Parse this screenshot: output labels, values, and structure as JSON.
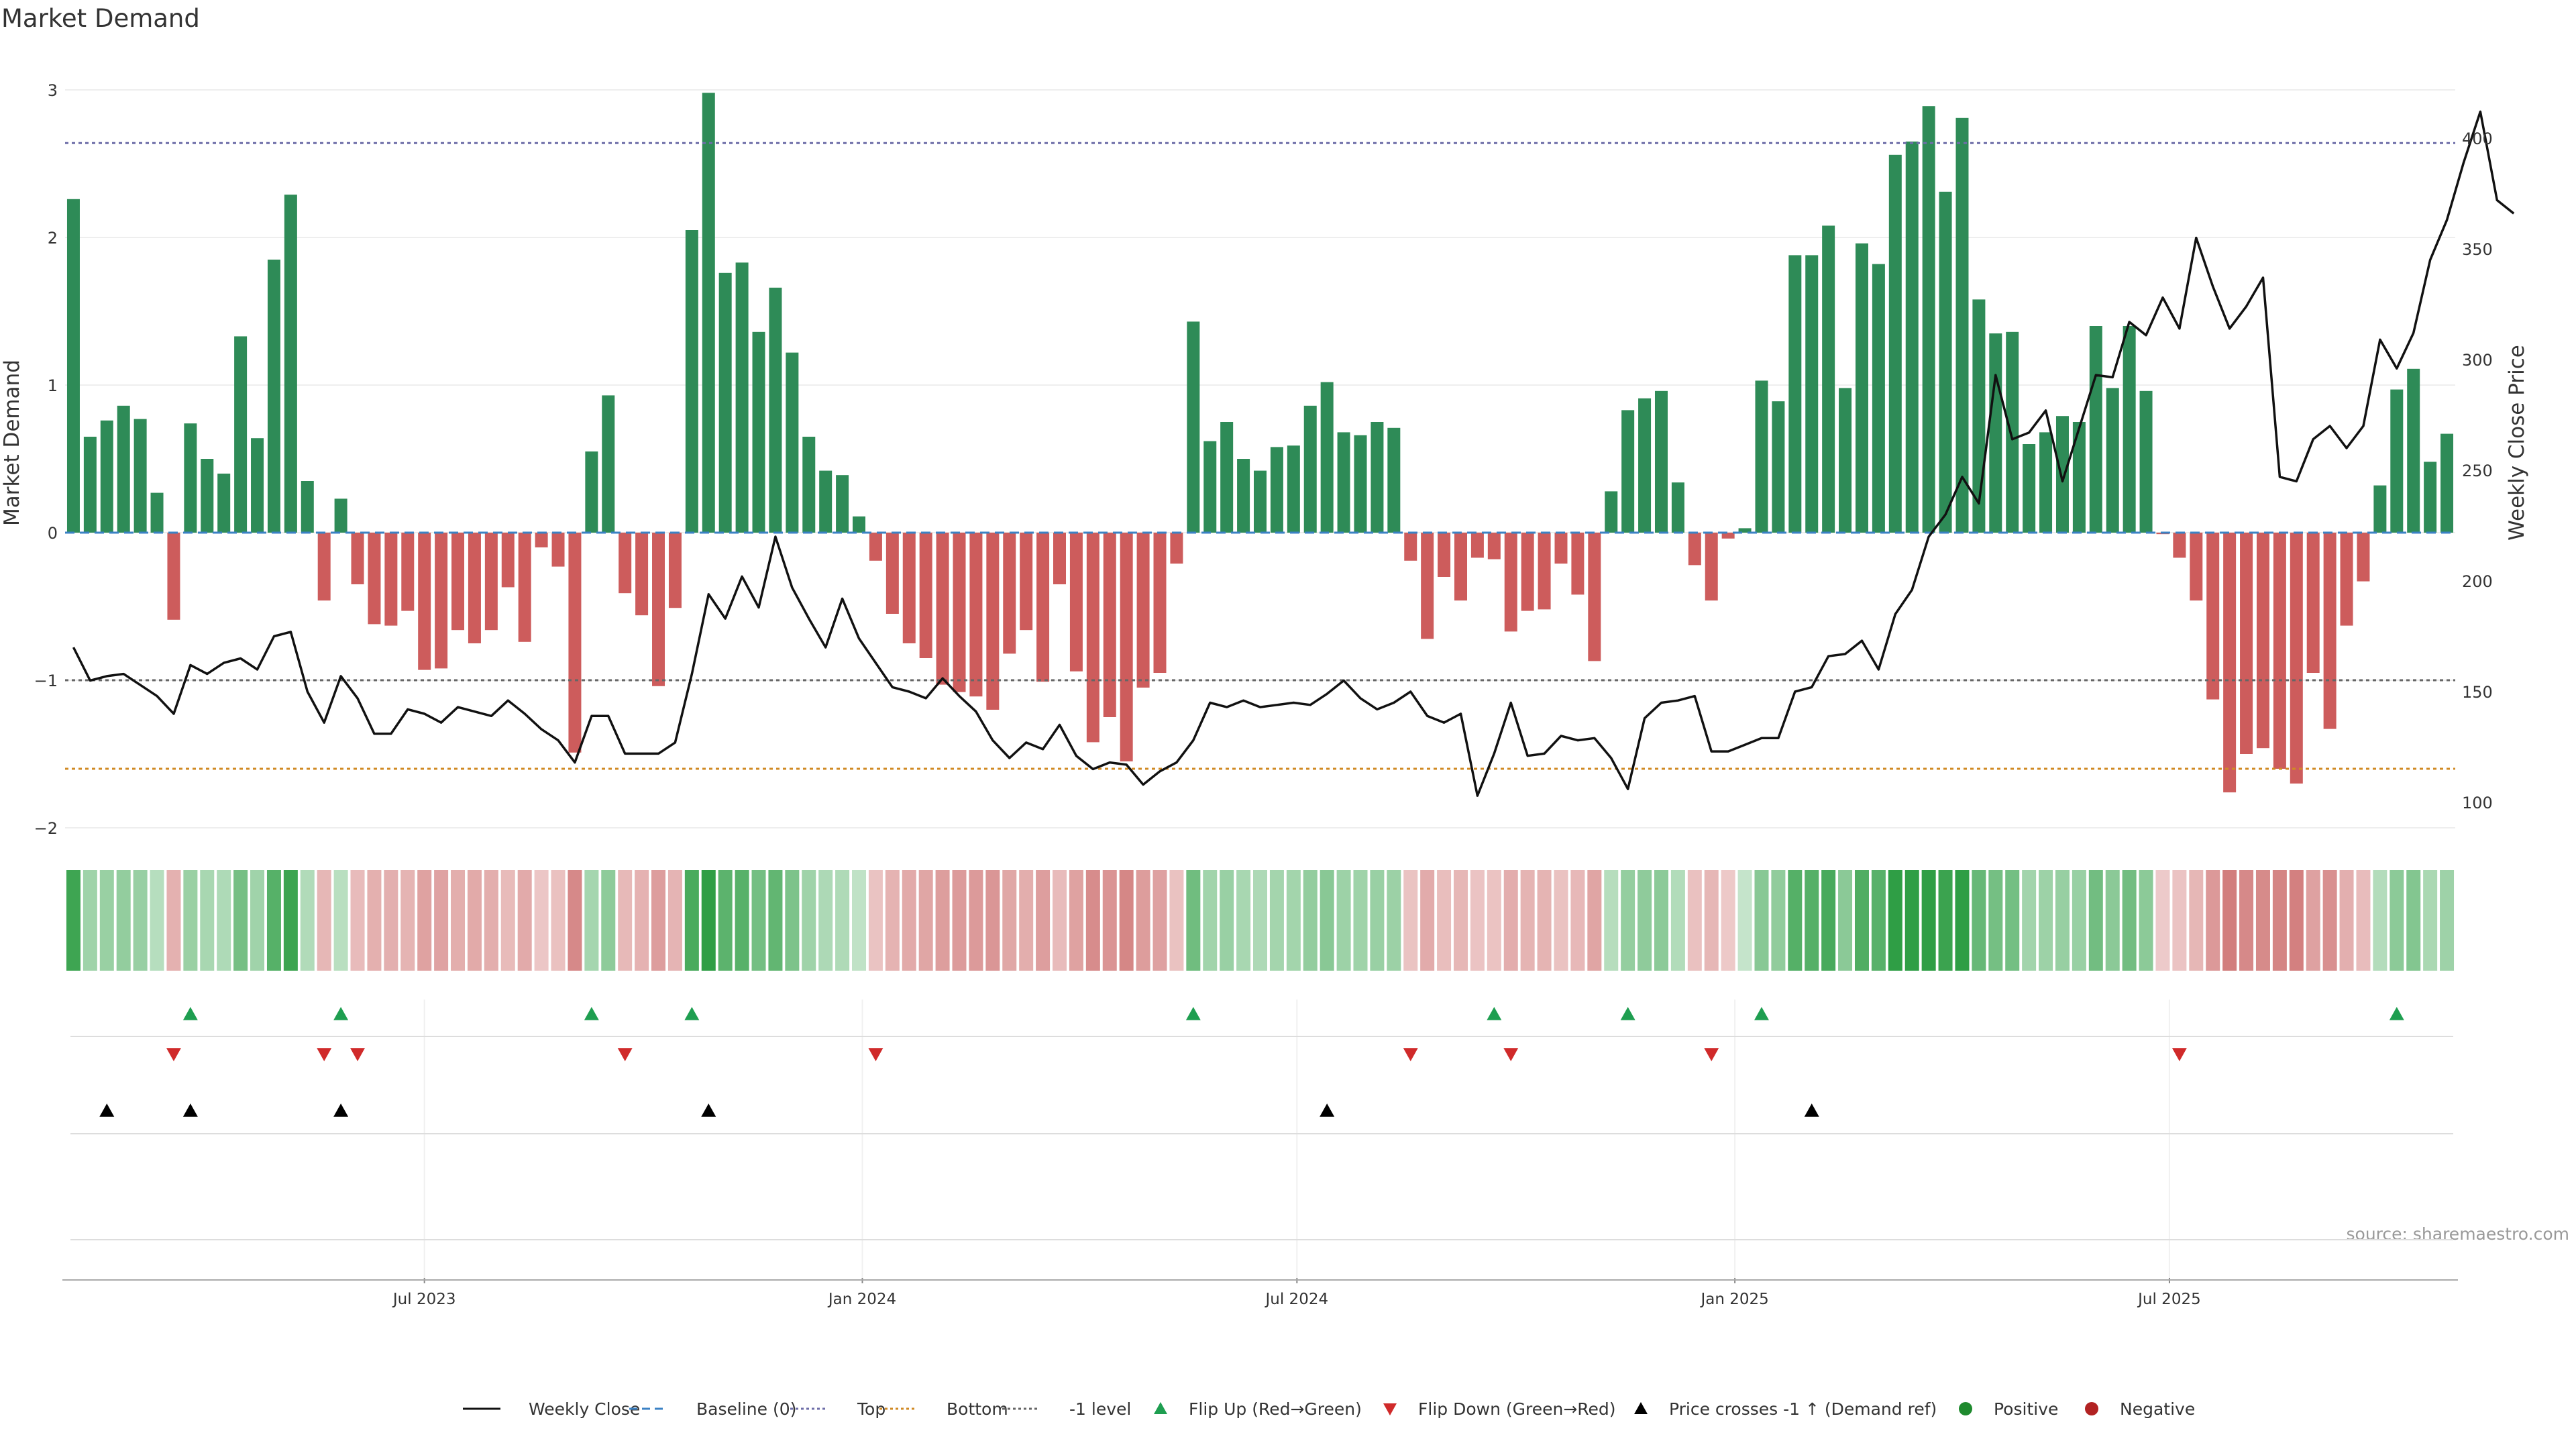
{
  "chart_data": {
    "type": "bar",
    "title": "Market Demand",
    "ylabel": "Market Demand",
    "y2label": "Weekly Close Price",
    "ylim": [
      -2.25,
      3.2
    ],
    "y_ticks": [
      3,
      2,
      1,
      0,
      -1,
      -2
    ],
    "y_tick_labels": [
      "3",
      "2",
      "1",
      "0",
      "−1",
      "−2"
    ],
    "y2lim": [
      90,
      425
    ],
    "y2_ticks": [
      400,
      350,
      300,
      250,
      200,
      150,
      100
    ],
    "y2_tick_labels": [
      "400",
      "350",
      "300",
      "250",
      "200",
      "150",
      "100"
    ],
    "x_ticks": [
      {
        "label": "Jul 2023",
        "week": 21.5
      },
      {
        "label": "Jan 2024",
        "week": 47.7
      },
      {
        "label": "Jul 2024",
        "week": 73.7
      },
      {
        "label": "Jan 2025",
        "week": 99.9
      },
      {
        "label": "Jul 2025",
        "week": 125.9
      }
    ],
    "reference_lines": {
      "top": 2.64,
      "bottom": -1.6,
      "minus_one": -1
    },
    "series": [
      {
        "name": "Market Demand",
        "kind": "bar",
        "values": [
          2.26,
          0.65,
          0.76,
          0.86,
          0.77,
          0.27,
          -0.59,
          0.74,
          0.5,
          0.4,
          1.33,
          0.64,
          1.85,
          2.29,
          0.35,
          -0.46,
          0.23,
          -0.35,
          -0.62,
          -0.63,
          -0.53,
          -0.93,
          -0.92,
          -0.66,
          -0.75,
          -0.66,
          -0.37,
          -0.74,
          -0.1,
          -0.23,
          -1.49,
          0.55,
          0.93,
          -0.41,
          -0.56,
          -1.04,
          -0.51,
          2.05,
          2.98,
          1.76,
          1.83,
          1.36,
          1.66,
          1.22,
          0.65,
          0.42,
          0.39,
          0.11,
          -0.19,
          -0.55,
          -0.75,
          -0.85,
          -1.03,
          -1.08,
          -1.11,
          -1.2,
          -0.82,
          -0.66,
          -1.01,
          -0.35,
          -0.94,
          -1.42,
          -1.25,
          -1.55,
          -1.05,
          -0.95,
          -0.21,
          1.43,
          0.62,
          0.75,
          0.5,
          0.42,
          0.58,
          0.59,
          0.86,
          1.02,
          0.68,
          0.66,
          0.75,
          0.71,
          -0.19,
          -0.72,
          -0.3,
          -0.46,
          -0.17,
          -0.18,
          -0.67,
          -0.53,
          -0.52,
          -0.21,
          -0.42,
          -0.87,
          0.28,
          0.83,
          0.91,
          0.96,
          0.34,
          -0.22,
          -0.46,
          -0.04,
          0.03,
          1.03,
          0.89,
          1.88,
          1.88,
          2.08,
          0.98,
          1.96,
          1.82,
          2.56,
          2.65,
          2.89,
          2.31,
          2.81,
          1.58,
          1.35,
          1.36,
          0.6,
          0.68,
          0.79,
          0.75,
          1.4,
          0.98,
          1.4,
          0.96,
          -0.01,
          -0.17,
          -0.46,
          -1.13,
          -1.76,
          -1.5,
          -1.46,
          -1.6,
          -1.7,
          -0.95,
          -1.33,
          -0.63,
          -0.33,
          0.32,
          0.97,
          1.11,
          0.48,
          0.67
        ]
      },
      {
        "name": "Weekly Close",
        "kind": "line",
        "axis": "right",
        "values": [
          170,
          155,
          157,
          158,
          153,
          148,
          140,
          162,
          158,
          163,
          165,
          160,
          175,
          177,
          150,
          136,
          157,
          147,
          131,
          131,
          142,
          140,
          136,
          143,
          141,
          139,
          146,
          140,
          133,
          128,
          118,
          139,
          139,
          122,
          122,
          122,
          127,
          158,
          194,
          183,
          202,
          188,
          220,
          197,
          183,
          170,
          192,
          174,
          163,
          152,
          150,
          147,
          156,
          148,
          141,
          128,
          120,
          127,
          124,
          135,
          121,
          115,
          118,
          117,
          108,
          114,
          118,
          128,
          145,
          143,
          146,
          143,
          144,
          145,
          144,
          149,
          155,
          147,
          142,
          145,
          150,
          139,
          136,
          140,
          103,
          122,
          145,
          121,
          122,
          130,
          128,
          129,
          120,
          106,
          138,
          145,
          146,
          148,
          123,
          123,
          126,
          129,
          129,
          150,
          152,
          166,
          167,
          173,
          160,
          185,
          196,
          220,
          230,
          247,
          235,
          293,
          264,
          267,
          277,
          245,
          269,
          293,
          292,
          317,
          311,
          328,
          314,
          355,
          333,
          314,
          324,
          337,
          247,
          245,
          264,
          270,
          260,
          270,
          309,
          296,
          312,
          345,
          363,
          389,
          412,
          372,
          366
        ]
      }
    ],
    "signals": {
      "flip_up_weeks": [
        7,
        16,
        31,
        37,
        67,
        85,
        93,
        101,
        139
      ],
      "flip_down_weeks": [
        6,
        15,
        17,
        33,
        48,
        80,
        86,
        98,
        126
      ],
      "price_cross_weeks": [
        2,
        7,
        16,
        38,
        75,
        104
      ]
    },
    "legend": [
      {
        "label": "Weekly Close",
        "marker": "solid-line",
        "color": "#111111"
      },
      {
        "label": "Baseline (0)",
        "marker": "dashed-line",
        "color": "#3b82c4"
      },
      {
        "label": "Top",
        "marker": "dotted-line",
        "color": "#6e6ea8"
      },
      {
        "label": "Bottom",
        "marker": "dotted-line",
        "color": "#d08a24"
      },
      {
        "label": "-1 level",
        "marker": "dotted-line",
        "color": "#666666"
      },
      {
        "label": "Flip Up (Red→Green)",
        "marker": "triangle-up",
        "color": "#1e9e50"
      },
      {
        "label": "Flip Down (Green→Red)",
        "marker": "triangle-down",
        "color": "#d02a2a"
      },
      {
        "label": "Price crosses -1 ↑ (Demand ref)",
        "marker": "triangle-up",
        "color": "#000000"
      },
      {
        "label": "Positive",
        "marker": "circle",
        "color": "#1e8a2e"
      },
      {
        "label": "Negative",
        "marker": "circle",
        "color": "#b22222"
      }
    ],
    "legend_position": "bottom-center",
    "colors": {
      "positive_bar": "#2e8b57",
      "negative_bar": "#cd5c5c",
      "price_line": "#111111",
      "baseline": "#3b82c4",
      "top_line": "#6e6ea8",
      "bottom_line": "#d08a24",
      "minus_one_line": "#666666",
      "flip_up": "#1e9e50",
      "flip_down": "#d02a2a",
      "price_cross": "#000000"
    }
  },
  "source_note": "source: sharemaestro.com"
}
